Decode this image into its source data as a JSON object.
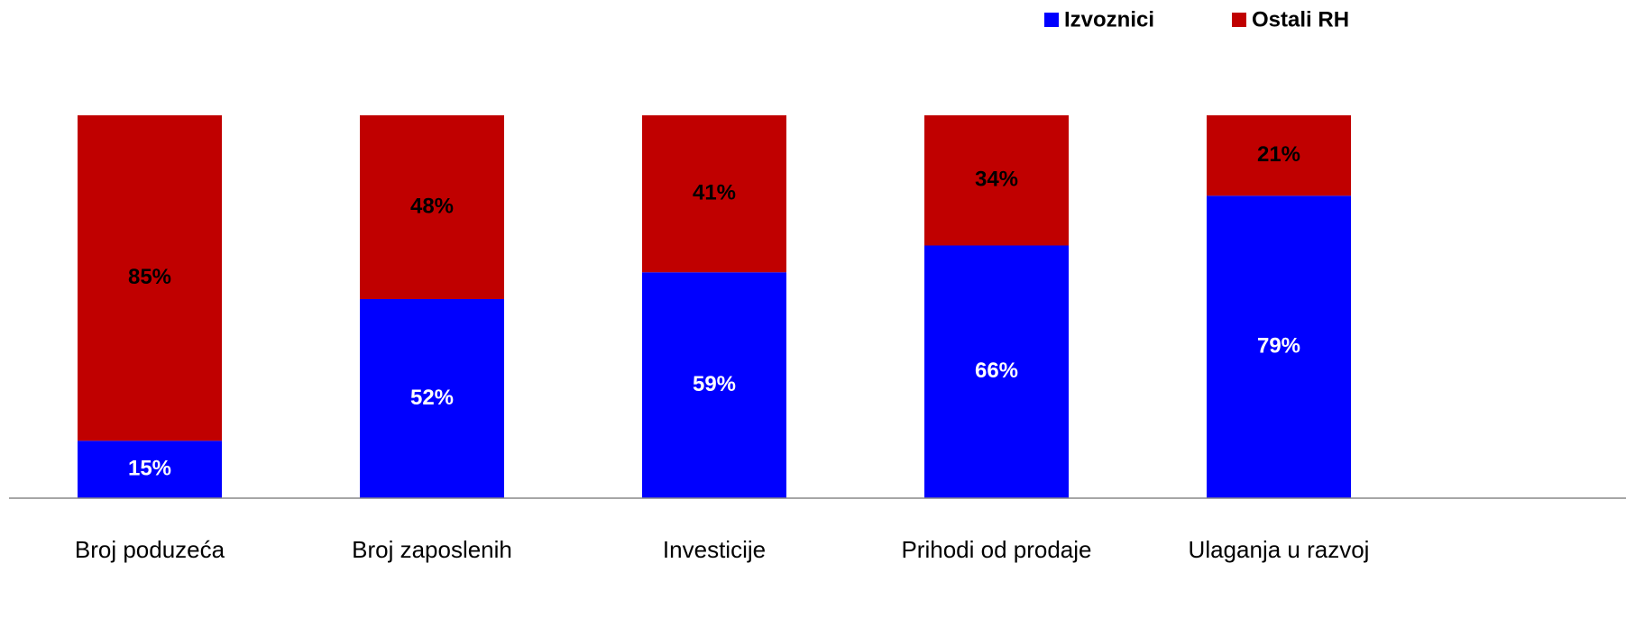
{
  "chart_data": {
    "type": "stacked_bar",
    "categories": [
      "Broj poduzeća",
      "Broj zaposlenih",
      "Investicije",
      "Prihodi od prodaje",
      "Ulaganja u razvoj"
    ],
    "series": [
      {
        "name": "Izvoznici",
        "color": "#0000ff",
        "values": [
          15,
          52,
          59,
          66,
          79
        ],
        "value_labels": [
          "15%",
          "52%",
          "59%",
          "66%",
          "79%"
        ]
      },
      {
        "name": "Ostali RH",
        "color": "#c00000",
        "values": [
          85,
          48,
          41,
          34,
          21
        ],
        "value_labels": [
          "85%",
          "48%",
          "41%",
          "34%",
          "21%"
        ]
      }
    ],
    "ylim": [
      0,
      100
    ],
    "legend": "top-right"
  }
}
